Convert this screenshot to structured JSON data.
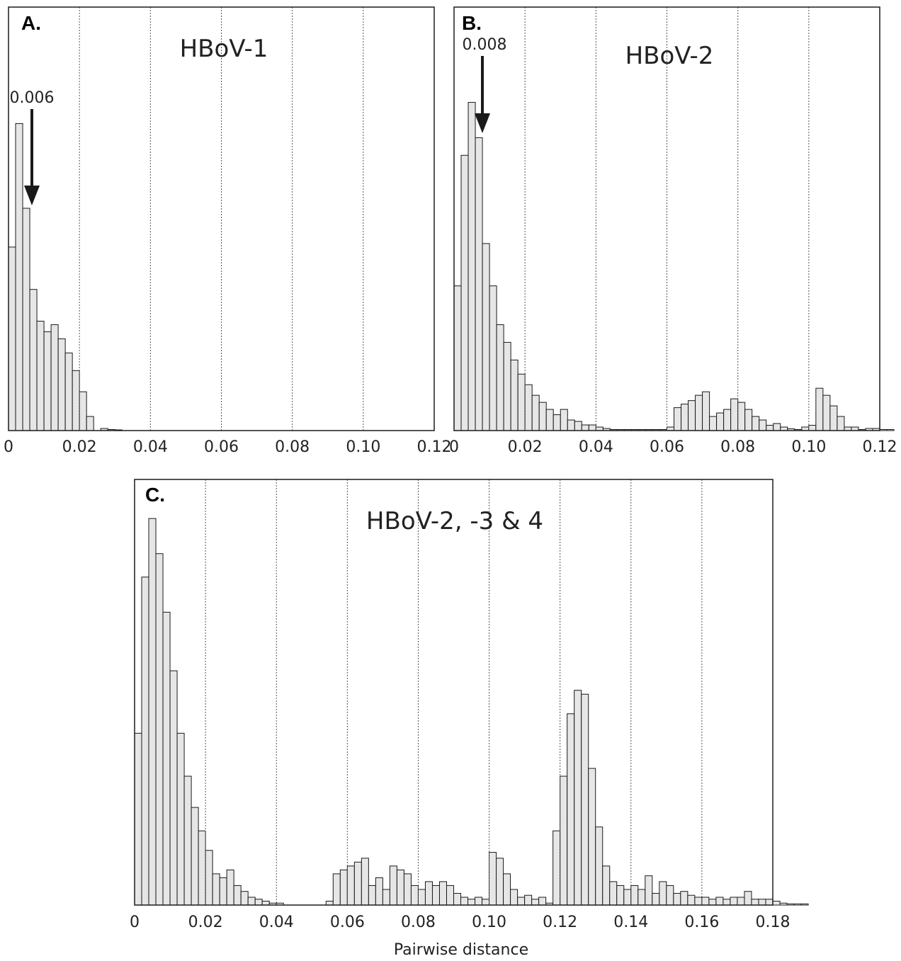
{
  "chart_data": [
    {
      "type": "bar",
      "panel_label": "A.",
      "title": "HBoV-1",
      "xlim": [
        0,
        0.12
      ],
      "xticks": [
        "0",
        "0.02",
        "0.04",
        "0.06",
        "0.08",
        "0.10",
        "0.12"
      ],
      "grid": "vertical dotted",
      "bin_width": 0.002,
      "bin_start": 0,
      "values": [
        52,
        87,
        63,
        40,
        31,
        28,
        30,
        26,
        22,
        17,
        11,
        4,
        0,
        0.6,
        0.3,
        0.2,
        0,
        0,
        0,
        0,
        0,
        0,
        0,
        0,
        0,
        0,
        0,
        0,
        0,
        0,
        0,
        0,
        0,
        0,
        0,
        0,
        0,
        0,
        0,
        0,
        0,
        0,
        0,
        0,
        0,
        0,
        0,
        0,
        0,
        0,
        0,
        0,
        0,
        0,
        0,
        0,
        0,
        0,
        0,
        0
      ],
      "ylim": [
        0,
        120
      ],
      "annotation": {
        "label": "0.006",
        "x": 0.006
      }
    },
    {
      "type": "bar",
      "panel_label": "B.",
      "title": "HBoV-2",
      "xlim": [
        0,
        0.12
      ],
      "xticks": [
        "0",
        "0.02",
        "0.04",
        "0.06",
        "0.08",
        "0.10",
        "0.12"
      ],
      "grid": "vertical dotted",
      "bin_width": 0.002,
      "bin_start": 0,
      "values": [
        41,
        78,
        93,
        83,
        53,
        41,
        30,
        25,
        20,
        16,
        13,
        10,
        8,
        6,
        4.5,
        6,
        3,
        2.6,
        1.6,
        1.6,
        1,
        0.6,
        0.3,
        0.3,
        0.3,
        0.3,
        0.3,
        0.3,
        0.3,
        0.3,
        1,
        6.5,
        7.5,
        8.5,
        10,
        11,
        4,
        5,
        6,
        9,
        8,
        6,
        4,
        3,
        1.5,
        2,
        1,
        0.5,
        0.3,
        1,
        1.5,
        12,
        10,
        7,
        4,
        1,
        1,
        0.3,
        0.6,
        0.6,
        0.3,
        0.3
      ],
      "ylim": [
        0,
        120
      ],
      "annotation": {
        "label": "0.008",
        "x": 0.008
      }
    },
    {
      "type": "bar",
      "panel_label": "C.",
      "title": "HBoV-2, -3 & 4",
      "xlim": [
        0,
        0.18
      ],
      "xticks": [
        "0",
        "0.02",
        "0.04",
        "0.06",
        "0.08",
        "0.10",
        "0.12",
        "0.14",
        "0.16",
        "0.18"
      ],
      "xlabel": "Pairwise distance",
      "grid": "vertical dotted",
      "bin_width": 0.002,
      "bin_start": 0,
      "values": [
        44,
        84,
        99,
        90,
        75,
        60,
        44,
        33,
        25,
        19,
        14,
        8,
        7,
        9,
        5,
        3.5,
        2,
        1.5,
        1,
        0.5,
        0.5,
        0,
        0,
        0,
        0,
        0,
        0,
        1,
        8,
        9,
        10,
        11,
        12,
        5,
        7,
        4,
        10,
        9,
        8,
        5,
        4,
        6,
        5,
        6,
        5,
        3,
        2,
        1.5,
        2,
        1.5,
        13.5,
        12,
        8,
        4,
        2,
        2.5,
        1.5,
        2,
        0.5,
        19,
        33,
        49,
        55,
        54,
        35,
        20,
        10,
        6,
        5,
        4,
        5,
        4,
        7.5,
        3,
        6,
        5,
        3,
        3.5,
        2.5,
        2,
        2,
        1.5,
        2,
        1.5,
        2,
        2,
        3.5,
        1.5,
        1.5,
        1.5,
        1,
        0.5,
        0.3,
        0.3,
        0.3
      ],
      "ylim": [
        0,
        109
      ]
    }
  ]
}
